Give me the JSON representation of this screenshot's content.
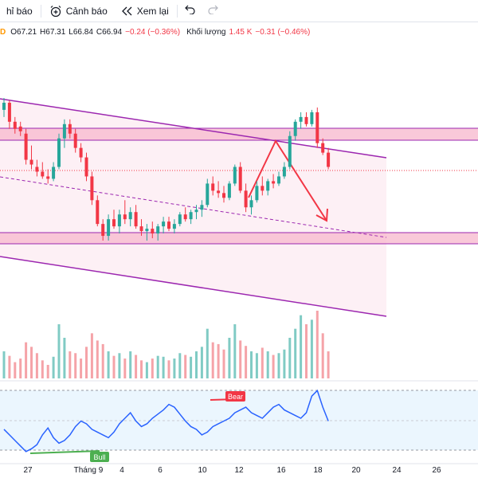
{
  "toolbar": {
    "indicators_label": "hỉ báo",
    "alert_label": "Cảnh báo",
    "replay_label": "Xem lại"
  },
  "legend": {
    "status_dot": "D",
    "open": "O67.21",
    "high": "H67.31",
    "low": "L66.84",
    "close": "C66.94",
    "change": "−0.24 (−0.36%)",
    "volume_label": "Khối lượng",
    "volume_value": "1.45 K",
    "volume_change": "−0.31 (−0.46%)"
  },
  "x_axis_labels": [
    "27",
    "Tháng 9",
    "4",
    "6",
    "10",
    "12",
    "16",
    "18",
    "20",
    "24",
    "26"
  ],
  "rsi_tags": {
    "bear": "Bear",
    "bull": "Bull"
  },
  "colors": {
    "up": "#26a69a",
    "down": "#f23645",
    "channel": "#9c27b0",
    "zone_fill": "#f8bbd0",
    "rsi_line": "#2962ff",
    "rsi_band": "#e3f2fd"
  },
  "chart_data": {
    "type": "candlestick",
    "price_scale_hint": "no price axis visible",
    "candles": [
      [
        70.4,
        70.9,
        70.1,
        70.7
      ],
      [
        70.7,
        70.8,
        69.6,
        69.9
      ],
      [
        69.9,
        70.1,
        69.4,
        69.6
      ],
      [
        69.7,
        69.9,
        69.3,
        69.5
      ],
      [
        69.4,
        69.6,
        68.1,
        68.3
      ],
      [
        68.3,
        68.9,
        67.9,
        68.1
      ],
      [
        68.0,
        68.3,
        67.6,
        67.8
      ],
      [
        67.8,
        68.2,
        67.5,
        67.6
      ],
      [
        67.6,
        67.9,
        67.3,
        67.5
      ],
      [
        67.5,
        68.2,
        67.4,
        68.0
      ],
      [
        68.0,
        69.4,
        67.9,
        69.2
      ],
      [
        69.2,
        70.0,
        68.8,
        69.8
      ],
      [
        69.8,
        70.0,
        69.2,
        69.4
      ],
      [
        69.4,
        69.6,
        68.6,
        68.8
      ],
      [
        68.8,
        69.0,
        68.2,
        68.4
      ],
      [
        68.4,
        68.6,
        67.4,
        67.6
      ],
      [
        67.6,
        67.8,
        66.4,
        66.6
      ],
      [
        66.6,
        66.8,
        65.5,
        65.6
      ],
      [
        65.6,
        65.8,
        64.9,
        65.1
      ],
      [
        65.1,
        66.0,
        64.9,
        65.8
      ],
      [
        65.8,
        66.2,
        65.4,
        65.5
      ],
      [
        65.5,
        66.2,
        65.2,
        66.0
      ],
      [
        66.0,
        66.6,
        65.6,
        65.8
      ],
      [
        65.8,
        66.3,
        65.5,
        66.1
      ],
      [
        66.1,
        66.4,
        65.4,
        65.5
      ],
      [
        65.5,
        65.8,
        65.1,
        65.3
      ],
      [
        65.3,
        65.6,
        64.9,
        65.4
      ],
      [
        65.4,
        65.7,
        65.0,
        65.2
      ],
      [
        65.2,
        65.6,
        64.9,
        65.5
      ],
      [
        65.5,
        65.9,
        65.2,
        65.7
      ],
      [
        65.7,
        65.9,
        65.3,
        65.4
      ],
      [
        65.4,
        65.8,
        65.2,
        65.6
      ],
      [
        65.6,
        66.1,
        65.5,
        66.0
      ],
      [
        66.0,
        66.3,
        65.7,
        65.8
      ],
      [
        65.8,
        66.2,
        65.6,
        66.1
      ],
      [
        66.1,
        66.4,
        65.8,
        66.2
      ],
      [
        66.2,
        66.6,
        65.9,
        66.4
      ],
      [
        66.4,
        67.5,
        66.3,
        67.3
      ],
      [
        67.3,
        67.6,
        66.8,
        67.0
      ],
      [
        67.0,
        67.4,
        66.7,
        66.9
      ],
      [
        66.9,
        67.2,
        66.5,
        66.7
      ],
      [
        66.7,
        67.4,
        66.6,
        67.3
      ],
      [
        67.3,
        68.1,
        67.2,
        68.0
      ],
      [
        68.0,
        68.2,
        66.9,
        67.0
      ],
      [
        67.0,
        67.3,
        66.1,
        66.3
      ],
      [
        66.3,
        66.8,
        66.0,
        66.6
      ],
      [
        66.6,
        67.4,
        66.5,
        67.2
      ],
      [
        67.2,
        67.6,
        66.8,
        67.0
      ],
      [
        67.0,
        67.5,
        66.8,
        67.4
      ],
      [
        67.4,
        67.7,
        67.1,
        67.3
      ],
      [
        67.3,
        67.8,
        67.2,
        67.6
      ],
      [
        67.6,
        68.2,
        67.5,
        68.0
      ],
      [
        68.0,
        69.5,
        67.9,
        69.3
      ],
      [
        69.3,
        70.0,
        69.1,
        69.9
      ],
      [
        69.9,
        70.3,
        69.6,
        70.1
      ],
      [
        70.1,
        70.3,
        69.7,
        69.8
      ],
      [
        69.8,
        70.4,
        69.7,
        70.3
      ],
      [
        70.3,
        70.5,
        68.8,
        69.0
      ],
      [
        69.0,
        69.2,
        68.5,
        68.6
      ],
      [
        68.6,
        68.8,
        67.9,
        68.0
      ]
    ],
    "volume": [
      30,
      25,
      18,
      22,
      40,
      35,
      28,
      20,
      15,
      24,
      60,
      45,
      30,
      28,
      22,
      35,
      50,
      42,
      38,
      30,
      25,
      28,
      22,
      30,
      26,
      20,
      18,
      22,
      25,
      24,
      20,
      22,
      28,
      26,
      24,
      30,
      35,
      55,
      40,
      38,
      32,
      45,
      60,
      42,
      36,
      30,
      28,
      34,
      30,
      26,
      28,
      32,
      45,
      55,
      70,
      60,
      65,
      75,
      50,
      30
    ],
    "rsi": [
      44,
      40,
      36,
      32,
      28,
      30,
      33,
      40,
      45,
      38,
      34,
      36,
      40,
      46,
      50,
      48,
      44,
      42,
      40,
      38,
      42,
      48,
      52,
      56,
      50,
      46,
      48,
      52,
      55,
      58,
      62,
      60,
      55,
      50,
      46,
      44,
      40,
      42,
      46,
      48,
      50,
      52,
      56,
      58,
      60,
      56,
      54,
      52,
      56,
      60,
      62,
      58,
      56,
      54,
      52,
      56,
      68,
      72,
      60,
      50
    ]
  }
}
